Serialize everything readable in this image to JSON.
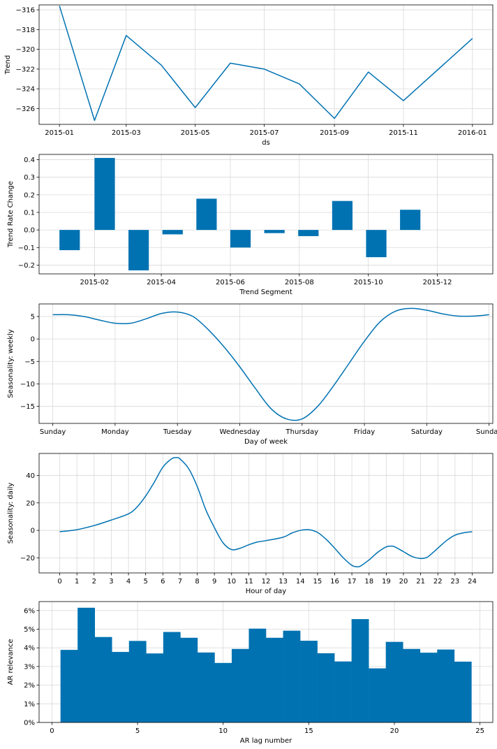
{
  "colors": {
    "series": "#0072B2",
    "grid": "#d9d9d9",
    "axis": "#000000"
  },
  "chart_data": [
    {
      "id": "trend",
      "type": "line",
      "title": "",
      "xlabel": "ds",
      "ylabel": "Trend",
      "x_type": "date",
      "xlim": [
        "2014-12-14",
        "2016-01-19"
      ],
      "ylim": [
        -327.6,
        -315.5
      ],
      "grid": true,
      "x_ticks": [
        {
          "value": "2015-01-01",
          "label": "2015-01"
        },
        {
          "value": "2015-03-01",
          "label": "2015-03"
        },
        {
          "value": "2015-05-01",
          "label": "2015-05"
        },
        {
          "value": "2015-07-01",
          "label": "2015-07"
        },
        {
          "value": "2015-09-01",
          "label": "2015-09"
        },
        {
          "value": "2015-11-01",
          "label": "2015-11"
        },
        {
          "value": "2016-01-01",
          "label": "2016-01"
        }
      ],
      "y_ticks": [
        {
          "value": -316,
          "label": "−316"
        },
        {
          "value": -318,
          "label": "−318"
        },
        {
          "value": -320,
          "label": "−320"
        },
        {
          "value": -322,
          "label": "−322"
        },
        {
          "value": -324,
          "label": "−324"
        },
        {
          "value": -326,
          "label": "−326"
        }
      ],
      "x": [
        "2015-01-01",
        "2015-02-01",
        "2015-03-01",
        "2015-04-01",
        "2015-05-01",
        "2015-06-01",
        "2015-07-01",
        "2015-08-01",
        "2015-09-01",
        "2015-10-01",
        "2015-11-01",
        "2016-01-01"
      ],
      "y": [
        -315.6,
        -327.2,
        -318.6,
        -321.6,
        -325.9,
        -321.4,
        -322.0,
        -323.5,
        -327.0,
        -322.3,
        -325.2,
        -318.9
      ]
    },
    {
      "id": "trend-rate-change",
      "type": "bar",
      "title": "",
      "xlabel": "Trend Segment",
      "ylabel": "Trend Rate Change",
      "x_type": "date",
      "xlim": [
        "2014-12-14",
        "2016-01-19"
      ],
      "ylim": [
        -0.25,
        0.43
      ],
      "grid": true,
      "bar_width_days": 18,
      "x_ticks": [
        {
          "value": "2015-02-01",
          "label": "2015-02"
        },
        {
          "value": "2015-04-01",
          "label": "2015-04"
        },
        {
          "value": "2015-06-01",
          "label": "2015-06"
        },
        {
          "value": "2015-08-01",
          "label": "2015-08"
        },
        {
          "value": "2015-10-01",
          "label": "2015-10"
        },
        {
          "value": "2015-12-01",
          "label": "2015-12"
        }
      ],
      "y_ticks": [
        {
          "value": 0.4,
          "label": "0.4"
        },
        {
          "value": 0.3,
          "label": "0.3"
        },
        {
          "value": 0.2,
          "label": "0.2"
        },
        {
          "value": 0.1,
          "label": "0.1"
        },
        {
          "value": 0.0,
          "label": "0.0"
        },
        {
          "value": -0.1,
          "label": "−0.1"
        },
        {
          "value": -0.2,
          "label": "−0.2"
        }
      ],
      "x": [
        "2015-01-10",
        "2015-02-10",
        "2015-03-12",
        "2015-04-11",
        "2015-05-11",
        "2015-06-10",
        "2015-07-10",
        "2015-08-09",
        "2015-09-08",
        "2015-10-08",
        "2015-11-07"
      ],
      "values": [
        -0.115,
        0.41,
        -0.23,
        -0.025,
        0.178,
        -0.1,
        -0.018,
        -0.035,
        0.165,
        -0.155,
        0.115
      ]
    },
    {
      "id": "seasonality-weekly",
      "type": "line",
      "title": "",
      "xlabel": "Day of week",
      "ylabel": "Seasonality: weekly",
      "xlim": [
        -0.22,
        7.06
      ],
      "ylim": [
        -18.8,
        7.8
      ],
      "grid": true,
      "x_ticks": [
        {
          "value": 0,
          "label": "Sunday"
        },
        {
          "value": 1,
          "label": "Monday"
        },
        {
          "value": 2,
          "label": "Tuesday"
        },
        {
          "value": 3,
          "label": "Wednesday"
        },
        {
          "value": 4,
          "label": "Thursday"
        },
        {
          "value": 5,
          "label": "Friday"
        },
        {
          "value": 6,
          "label": "Saturday"
        },
        {
          "value": 7,
          "label": "Sunday"
        }
      ],
      "y_ticks": [
        {
          "value": 5,
          "label": "5"
        },
        {
          "value": 0,
          "label": "0"
        },
        {
          "value": -5,
          "label": "−5"
        },
        {
          "value": -10,
          "label": "−10"
        },
        {
          "value": -15,
          "label": "−15"
        }
      ],
      "x": [
        0,
        0.25,
        0.5,
        0.75,
        1,
        1.25,
        1.5,
        1.75,
        2,
        2.25,
        2.5,
        2.75,
        3,
        3.25,
        3.5,
        3.75,
        4,
        4.25,
        4.5,
        4.75,
        5,
        5.25,
        5.5,
        5.75,
        6,
        6.25,
        6.5,
        6.75,
        7
      ],
      "y": [
        5.4,
        5.4,
        5.0,
        4.2,
        3.5,
        3.5,
        4.5,
        5.7,
        6.0,
        5.0,
        2.0,
        -1.8,
        -6.2,
        -11.0,
        -15.5,
        -17.8,
        -17.8,
        -15.0,
        -10.5,
        -5.5,
        -0.5,
        3.8,
        6.2,
        6.8,
        6.4,
        5.6,
        5.1,
        5.1,
        5.4
      ]
    },
    {
      "id": "seasonality-daily",
      "type": "line",
      "title": "",
      "xlabel": "Hour of day",
      "ylabel": "Seasonality: daily",
      "xlim": [
        -1.2,
        25.2
      ],
      "ylim": [
        -31,
        56
      ],
      "grid": true,
      "x_ticks": [
        {
          "value": 0,
          "label": "0"
        },
        {
          "value": 1,
          "label": "1"
        },
        {
          "value": 2,
          "label": "2"
        },
        {
          "value": 3,
          "label": "3"
        },
        {
          "value": 4,
          "label": "4"
        },
        {
          "value": 5,
          "label": "5"
        },
        {
          "value": 6,
          "label": "6"
        },
        {
          "value": 7,
          "label": "7"
        },
        {
          "value": 8,
          "label": "8"
        },
        {
          "value": 9,
          "label": "9"
        },
        {
          "value": 10,
          "label": "10"
        },
        {
          "value": 11,
          "label": "11"
        },
        {
          "value": 12,
          "label": "12"
        },
        {
          "value": 13,
          "label": "13"
        },
        {
          "value": 14,
          "label": "14"
        },
        {
          "value": 15,
          "label": "15"
        },
        {
          "value": 16,
          "label": "16"
        },
        {
          "value": 17,
          "label": "17"
        },
        {
          "value": 18,
          "label": "18"
        },
        {
          "value": 19,
          "label": "19"
        },
        {
          "value": 20,
          "label": "20"
        },
        {
          "value": 21,
          "label": "21"
        },
        {
          "value": 22,
          "label": "22"
        },
        {
          "value": 23,
          "label": "23"
        },
        {
          "value": 24,
          "label": "24"
        }
      ],
      "y_ticks": [
        {
          "value": 40,
          "label": "40"
        },
        {
          "value": 20,
          "label": "20"
        },
        {
          "value": 0,
          "label": "0"
        },
        {
          "value": -20,
          "label": "−20"
        }
      ],
      "x": [
        0,
        1,
        2,
        3,
        4,
        4.5,
        5,
        5.5,
        6,
        6.5,
        6.8,
        7,
        7.5,
        8,
        8.5,
        9,
        9.5,
        10,
        10.5,
        11,
        11.5,
        12,
        13,
        13.5,
        14,
        14.5,
        15,
        15.5,
        16,
        16.5,
        17,
        17.3,
        17.5,
        18,
        18.5,
        19,
        19.3,
        19.5,
        20,
        20.5,
        21,
        21.3,
        21.5,
        22,
        22.5,
        23,
        23.5,
        24
      ],
      "y": [
        -1,
        0.5,
        3.5,
        7.5,
        12,
        17,
        25,
        35,
        46,
        52,
        53,
        52,
        45,
        32,
        15,
        2,
        -9,
        -14,
        -13,
        -10.5,
        -8.5,
        -7.5,
        -5,
        -2,
        0,
        0.5,
        -1.5,
        -6.5,
        -13,
        -20,
        -25.5,
        -26.5,
        -26,
        -21.5,
        -16,
        -12,
        -11.5,
        -12,
        -15.5,
        -19,
        -20.5,
        -20,
        -18.5,
        -13,
        -7.5,
        -3.5,
        -1.8,
        -1
      ]
    },
    {
      "id": "ar-relevance",
      "type": "bar",
      "title": "",
      "xlabel": "AR lag number",
      "ylabel": "AR relevance",
      "xlim": [
        -0.75,
        25.75
      ],
      "ylim": [
        0,
        0.0648
      ],
      "grid": true,
      "y_format": "percent",
      "x_ticks": [
        {
          "value": 0,
          "label": "0"
        },
        {
          "value": 5,
          "label": "5"
        },
        {
          "value": 10,
          "label": "10"
        },
        {
          "value": 15,
          "label": "15"
        },
        {
          "value": 20,
          "label": "20"
        },
        {
          "value": 25,
          "label": "25"
        }
      ],
      "y_ticks": [
        {
          "value": 0,
          "label": "0%"
        },
        {
          "value": 0.01,
          "label": "1%"
        },
        {
          "value": 0.02,
          "label": "2%"
        },
        {
          "value": 0.03,
          "label": "3%"
        },
        {
          "value": 0.04,
          "label": "4%"
        },
        {
          "value": 0.05,
          "label": "5%"
        },
        {
          "value": 0.06,
          "label": "6%"
        }
      ],
      "categories": [
        1,
        2,
        3,
        4,
        5,
        6,
        7,
        8,
        9,
        10,
        11,
        12,
        13,
        14,
        15,
        16,
        17,
        18,
        19,
        20,
        21,
        22,
        23,
        24
      ],
      "values": [
        0.0389,
        0.0615,
        0.0458,
        0.0378,
        0.0437,
        0.037,
        0.0485,
        0.0454,
        0.0375,
        0.0319,
        0.0394,
        0.0503,
        0.0454,
        0.0492,
        0.0438,
        0.0371,
        0.0327,
        0.0554,
        0.029,
        0.0432,
        0.0394,
        0.0374,
        0.0391,
        0.0326
      ]
    }
  ]
}
